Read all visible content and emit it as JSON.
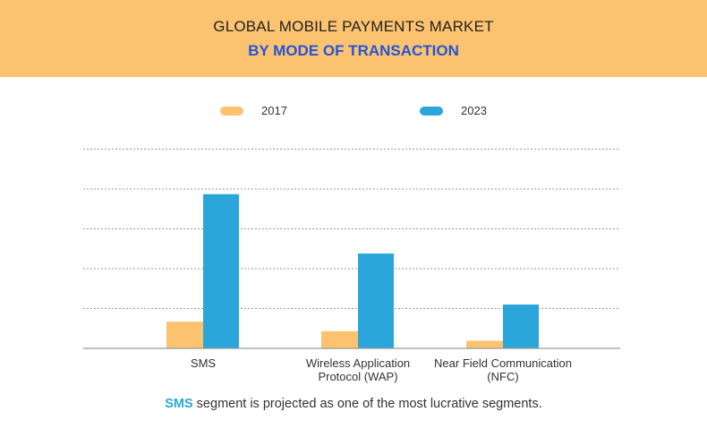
{
  "header": {
    "title": "GLOBAL MOBILE PAYMENTS MARKET",
    "subtitle": "BY MODE OF TRANSACTION"
  },
  "footer": {
    "highlight": "SMS",
    "text": " segment is projected as one of the most lucrative segments."
  },
  "chart_data": {
    "type": "bar",
    "categories": [
      "SMS",
      "Wireless Application Protocol (WAP)",
      "Near Field Communication (NFC)"
    ],
    "series": [
      {
        "name": "2017",
        "values": [
          0.67,
          0.43,
          0.19
        ],
        "color": "#fbc26f"
      },
      {
        "name": "2023",
        "values": [
          3.87,
          2.38,
          1.1
        ],
        "color": "#2ba6db"
      }
    ],
    "ylim": [
      0,
      5
    ],
    "grid": true,
    "legend": "top",
    "xlabel": "",
    "ylabel": ""
  }
}
